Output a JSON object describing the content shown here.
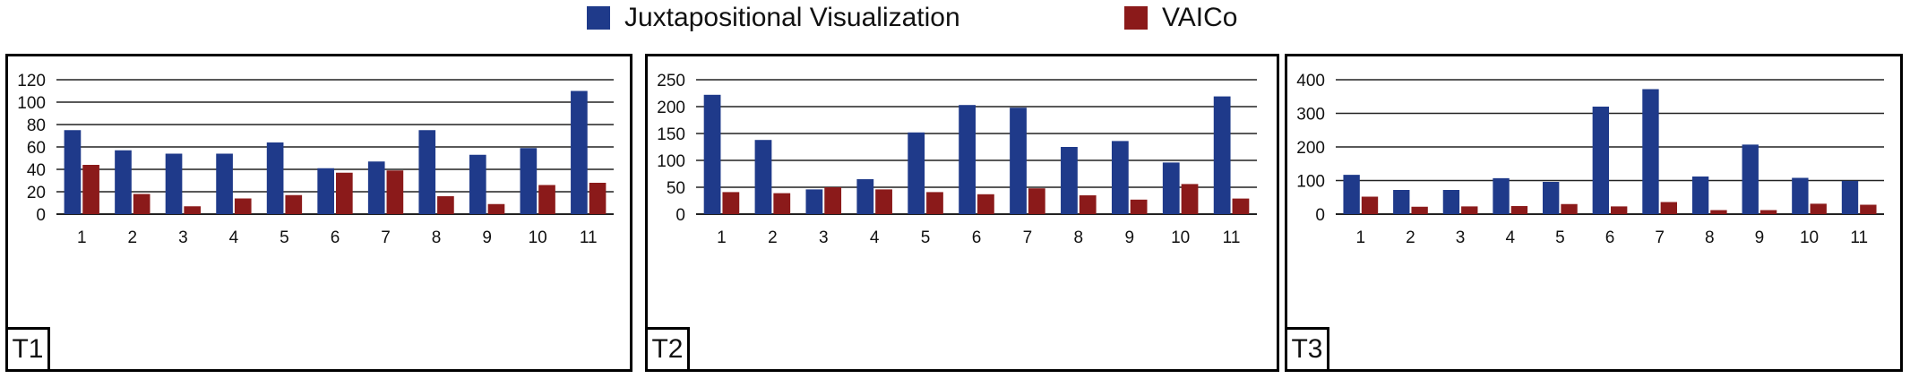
{
  "legend": {
    "series_a": "Juxtapositional Visualization",
    "series_b": "VAICo",
    "color_a": "#1f3a8a",
    "color_b": "#8b1a1a"
  },
  "chart_data": [
    {
      "type": "bar",
      "title": "T1",
      "categories": [
        "1",
        "2",
        "3",
        "4",
        "5",
        "6",
        "7",
        "8",
        "9",
        "10",
        "11"
      ],
      "ylim": [
        0,
        120
      ],
      "yticks": [
        0,
        20,
        40,
        60,
        80,
        100,
        120
      ],
      "grid": true,
      "series": [
        {
          "name": "Juxtapositional Visualization",
          "values": [
            75,
            57,
            54,
            54,
            64,
            41,
            47,
            75,
            53,
            59,
            110
          ]
        },
        {
          "name": "VAICo",
          "values": [
            44,
            18,
            7,
            14,
            17,
            37,
            39,
            16,
            9,
            26,
            28
          ]
        }
      ]
    },
    {
      "type": "bar",
      "title": "T2",
      "categories": [
        "1",
        "2",
        "3",
        "4",
        "5",
        "6",
        "7",
        "8",
        "9",
        "10",
        "11"
      ],
      "ylim": [
        0,
        250
      ],
      "yticks": [
        0,
        50,
        100,
        150,
        200,
        250
      ],
      "grid": true,
      "series": [
        {
          "name": "Juxtapositional Visualization",
          "values": [
            222,
            138,
            46,
            65,
            152,
            203,
            198,
            125,
            136,
            96,
            219
          ]
        },
        {
          "name": "VAICo",
          "values": [
            41,
            39,
            50,
            46,
            41,
            37,
            48,
            35,
            27,
            56,
            29
          ]
        }
      ]
    },
    {
      "type": "bar",
      "title": "T3",
      "categories": [
        "1",
        "2",
        "3",
        "4",
        "5",
        "6",
        "7",
        "8",
        "9",
        "10",
        "11"
      ],
      "ylim": [
        0,
        400
      ],
      "yticks": [
        0,
        100,
        200,
        300,
        400
      ],
      "grid": true,
      "series": [
        {
          "name": "Juxtapositional Visualization",
          "values": [
            117,
            72,
            72,
            107,
            96,
            320,
            372,
            112,
            207,
            108,
            99
          ]
        },
        {
          "name": "VAICo",
          "values": [
            52,
            22,
            23,
            24,
            30,
            23,
            36,
            12,
            12,
            31,
            28
          ]
        }
      ]
    }
  ]
}
